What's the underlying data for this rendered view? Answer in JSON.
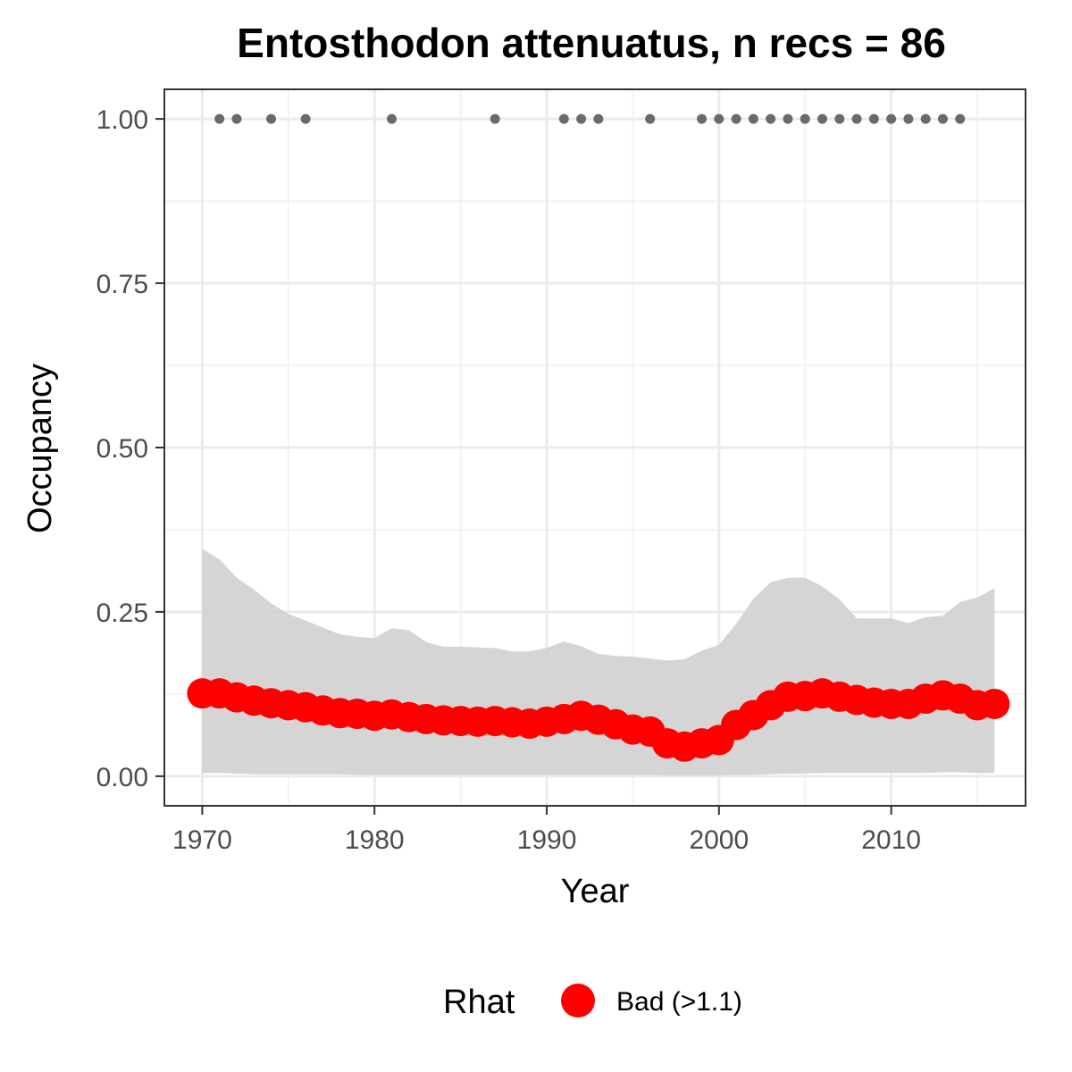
{
  "chart_data": {
    "type": "line",
    "title": "Entosthodon attenuatus, n recs = 86",
    "xlabel": "Year",
    "ylabel": "Occupancy",
    "xlim": [
      1967.8,
      2017.8
    ],
    "ylim": [
      -0.045,
      1.045
    ],
    "x_ticks": [
      1970,
      1980,
      1990,
      2000,
      2010
    ],
    "x_tick_labels": [
      "1970",
      "1980",
      "1990",
      "2000",
      "2010"
    ],
    "y_ticks": [
      0,
      0.25,
      0.5,
      0.75,
      1.0
    ],
    "y_tick_labels": [
      "0.00",
      "0.25",
      "0.50",
      "0.75",
      "1.00"
    ],
    "grid": true,
    "legend": {
      "title": "Rhat",
      "placement": "bottom",
      "entries": [
        {
          "label": "Bad (>1.1)",
          "color": "#ff0000"
        }
      ]
    },
    "x": [
      1970,
      1971,
      1972,
      1973,
      1974,
      1975,
      1976,
      1977,
      1978,
      1979,
      1980,
      1981,
      1982,
      1983,
      1984,
      1985,
      1986,
      1987,
      1988,
      1989,
      1990,
      1991,
      1992,
      1993,
      1994,
      1995,
      1996,
      1997,
      1998,
      1999,
      2000,
      2001,
      2002,
      2003,
      2004,
      2005,
      2006,
      2007,
      2008,
      2009,
      2010,
      2011,
      2012,
      2013,
      2014,
      2015,
      2016
    ],
    "series": [
      {
        "role": "mean",
        "color": "#ff0000",
        "rhat": "Bad (>1.1)",
        "values": [
          0.126,
          0.126,
          0.12,
          0.115,
          0.111,
          0.108,
          0.105,
          0.1,
          0.096,
          0.095,
          0.092,
          0.094,
          0.09,
          0.087,
          0.085,
          0.084,
          0.083,
          0.084,
          0.082,
          0.08,
          0.083,
          0.087,
          0.092,
          0.086,
          0.079,
          0.071,
          0.068,
          0.05,
          0.045,
          0.05,
          0.055,
          0.078,
          0.093,
          0.108,
          0.121,
          0.122,
          0.126,
          0.121,
          0.116,
          0.112,
          0.11,
          0.11,
          0.118,
          0.123,
          0.118,
          0.108,
          0.11
        ]
      },
      {
        "role": "ci_upper",
        "color": "#d3d3d3",
        "values": [
          0.346,
          0.33,
          0.302,
          0.284,
          0.263,
          0.247,
          0.237,
          0.226,
          0.216,
          0.212,
          0.21,
          0.225,
          0.222,
          0.204,
          0.197,
          0.197,
          0.196,
          0.195,
          0.19,
          0.19,
          0.195,
          0.205,
          0.198,
          0.186,
          0.183,
          0.182,
          0.179,
          0.176,
          0.178,
          0.191,
          0.2,
          0.232,
          0.27,
          0.295,
          0.302,
          0.302,
          0.289,
          0.269,
          0.24,
          0.24,
          0.24,
          0.233,
          0.242,
          0.244,
          0.265,
          0.272,
          0.286
        ]
      },
      {
        "role": "ci_lower",
        "color": "#d3d3d3",
        "values": [
          0.005,
          0.005,
          0.004,
          0.003,
          0.003,
          0.003,
          0.003,
          0.003,
          0.003,
          0.002,
          0.002,
          0.002,
          0.002,
          0.002,
          0.002,
          0.002,
          0.002,
          0.002,
          0.002,
          0.002,
          0.002,
          0.002,
          0.002,
          0.002,
          0.002,
          0.002,
          0.002,
          0.001,
          0.001,
          0.001,
          0.001,
          0.002,
          0.002,
          0.003,
          0.004,
          0.004,
          0.005,
          0.005,
          0.005,
          0.005,
          0.005,
          0.005,
          0.005,
          0.006,
          0.006,
          0.005,
          0.005
        ]
      }
    ],
    "observations": {
      "color": "#6a6a6a",
      "y": 1.0,
      "x": [
        1971,
        1972,
        1974,
        1976,
        1981,
        1987,
        1991,
        1992,
        1993,
        1996,
        1999,
        2000,
        2001,
        2002,
        2003,
        2004,
        2005,
        2006,
        2007,
        2008,
        2009,
        2010,
        2011,
        2012,
        2013,
        2014
      ]
    }
  }
}
